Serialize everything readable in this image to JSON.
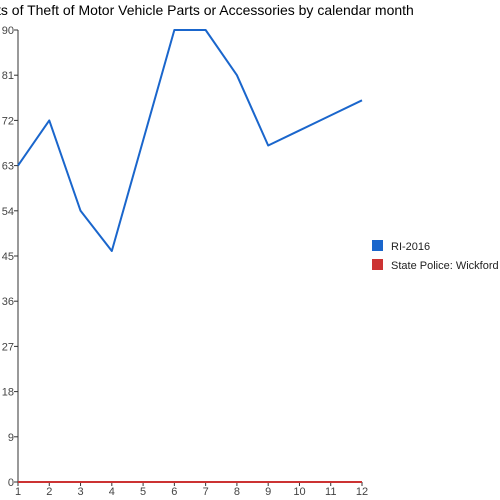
{
  "chart_data": {
    "type": "line",
    "title": "ts of Theft of Motor Vehicle Parts or Accessories by calendar month",
    "xlabel": "",
    "ylabel": "",
    "x": [
      1,
      2,
      3,
      4,
      5,
      6,
      7,
      8,
      9,
      10,
      11,
      12
    ],
    "ylim": [
      0,
      90
    ],
    "yticks": [
      0,
      9,
      18,
      27,
      36,
      45,
      54,
      63,
      72,
      81,
      90
    ],
    "grid": false,
    "legend_position": "right",
    "series": [
      {
        "name": "RI-2016",
        "color": "#1a66cc",
        "values": [
          63,
          72,
          54,
          46,
          68,
          90,
          90,
          81,
          67,
          70,
          73,
          76
        ]
      },
      {
        "name": "State Police: Wickford",
        "color": "#cc3333",
        "values": [
          0,
          0,
          0,
          0,
          0,
          0,
          0,
          0,
          0,
          0,
          0,
          0
        ]
      }
    ]
  }
}
